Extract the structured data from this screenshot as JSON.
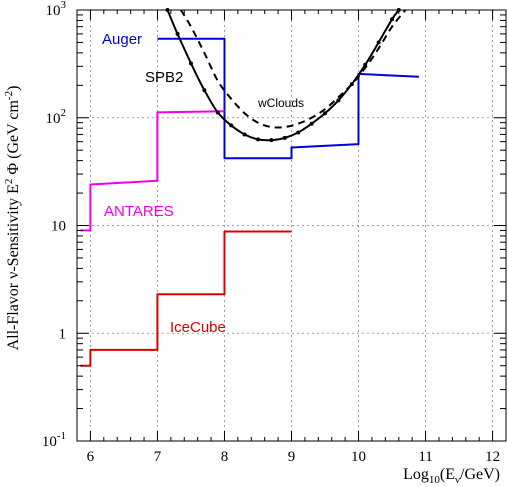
{
  "chart_data": {
    "type": "line",
    "title": "",
    "xlabel": "Log10(Eν/GeV)",
    "ylabel": "All-Flavor ν-Sensitivity E² Φ (GeV cm⁻²)",
    "xlim": [
      5.8,
      12.2
    ],
    "ylim": [
      0.1,
      1000
    ],
    "yscale": "log",
    "grid": true,
    "legend": "labels placed next to curves",
    "x_ticks": [
      {
        "value": 6,
        "label": "6"
      },
      {
        "value": 7,
        "label": "7"
      },
      {
        "value": 8,
        "label": "8"
      },
      {
        "value": 9,
        "label": "9"
      },
      {
        "value": 10,
        "label": "10"
      },
      {
        "value": 11,
        "label": "11"
      },
      {
        "value": 12,
        "label": "12"
      }
    ],
    "y_ticks": [
      {
        "value": 0.1,
        "base": "10",
        "exp": "-1"
      },
      {
        "value": 1,
        "base": "1",
        "exp": ""
      },
      {
        "value": 10,
        "base": "10",
        "exp": ""
      },
      {
        "value": 100,
        "base": "10",
        "exp": "2"
      },
      {
        "value": 1000,
        "base": "10",
        "exp": "3"
      }
    ],
    "series": [
      {
        "name": "Auger",
        "color": "#0000dd",
        "style": "step",
        "points": [
          [
            7.0,
            540
          ],
          [
            8.0,
            540
          ],
          [
            8.0,
            42
          ],
          [
            9.0,
            42
          ],
          [
            9.0,
            53
          ],
          [
            10.0,
            57
          ],
          [
            10.0,
            255
          ],
          [
            10.9,
            240
          ]
        ]
      },
      {
        "name": "ANTARES",
        "color": "#ee00ee",
        "style": "step",
        "points": [
          [
            5.85,
            9
          ],
          [
            6.0,
            9
          ],
          [
            6.0,
            24
          ],
          [
            7.0,
            26
          ],
          [
            7.0,
            112
          ],
          [
            8.0,
            115
          ]
        ]
      },
      {
        "name": "IceCube",
        "color": "#dd0000",
        "style": "step",
        "points": [
          [
            5.85,
            0.5
          ],
          [
            6.0,
            0.5
          ],
          [
            6.0,
            0.7
          ],
          [
            7.0,
            0.7
          ],
          [
            7.0,
            2.3
          ],
          [
            8.0,
            2.3
          ],
          [
            8.0,
            8.8
          ],
          [
            9.0,
            8.8
          ]
        ]
      },
      {
        "name": "SPB2",
        "color": "#000000",
        "style": "solid-with-markers",
        "points": [
          [
            7.15,
            1000
          ],
          [
            7.3,
            600
          ],
          [
            7.5,
            320
          ],
          [
            7.7,
            180
          ],
          [
            7.9,
            112
          ],
          [
            8.1,
            85
          ],
          [
            8.3,
            70
          ],
          [
            8.5,
            63
          ],
          [
            8.7,
            62
          ],
          [
            8.9,
            65
          ],
          [
            9.1,
            73
          ],
          [
            9.3,
            88
          ],
          [
            9.5,
            110
          ],
          [
            9.7,
            145
          ],
          [
            9.9,
            205
          ],
          [
            10.1,
            310
          ],
          [
            10.3,
            500
          ],
          [
            10.5,
            820
          ],
          [
            10.6,
            1000
          ]
        ]
      },
      {
        "name": "wClouds",
        "color": "#000000",
        "style": "dashed",
        "points": [
          [
            7.35,
            1000
          ],
          [
            7.5,
            700
          ],
          [
            7.7,
            400
          ],
          [
            7.9,
            220
          ],
          [
            8.1,
            150
          ],
          [
            8.3,
            110
          ],
          [
            8.5,
            90
          ],
          [
            8.7,
            82
          ],
          [
            8.9,
            82
          ],
          [
            9.1,
            88
          ],
          [
            9.3,
            100
          ],
          [
            9.5,
            120
          ],
          [
            9.7,
            155
          ],
          [
            9.9,
            205
          ],
          [
            10.1,
            290
          ],
          [
            10.3,
            440
          ],
          [
            10.5,
            700
          ],
          [
            10.7,
            1000
          ]
        ]
      }
    ]
  }
}
